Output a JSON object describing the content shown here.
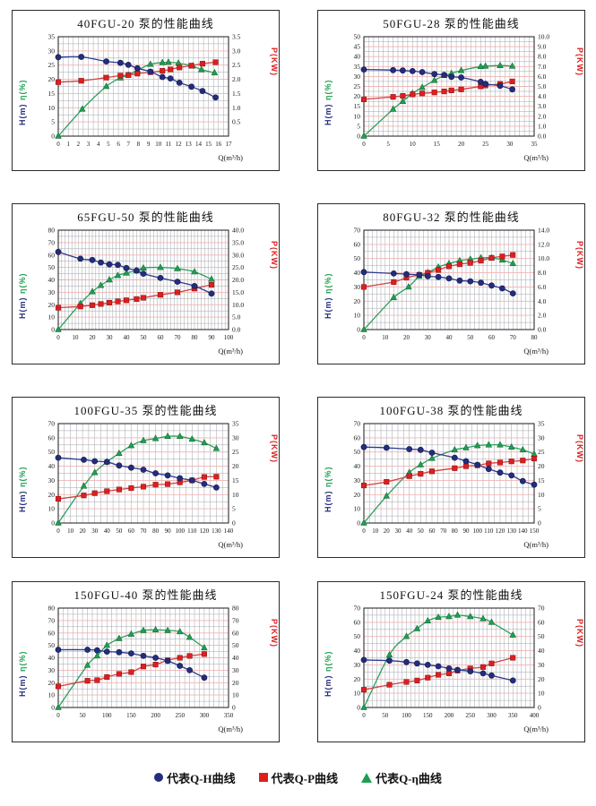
{
  "page": {
    "background": "#ffffff"
  },
  "style": {
    "h_color": "#232d7e",
    "p_color": "#dd1f1f",
    "eta_color": "#1e9e50",
    "h_line": "#2e3a8c",
    "p_line": "#cf4242",
    "eta_line": "#2f9e5e",
    "grid_gray": "#a0a4ac",
    "grid_pink": "#f0b4b4",
    "axis_color": "#1a1a1a",
    "tick_color": "#161616",
    "left_label_h": "H(m)",
    "left_label_eta": "η(%)",
    "right_label": "P(KW)"
  },
  "legend": {
    "items": [
      {
        "marker": "circle-marker-icon",
        "color": "#232d7e",
        "label": "代表Q-H曲线"
      },
      {
        "marker": "square-marker-icon",
        "color": "#dd1f1f",
        "label": "代表Q-P曲线"
      },
      {
        "marker": "triangle-marker-icon",
        "color": "#1e9e50",
        "label": "代表Q-η曲线"
      }
    ]
  },
  "chart_data": [
    {
      "type": "line",
      "model": "40FGU-20",
      "title": "40FGU-20 泵的性能曲线",
      "x_axis": {
        "label": "Q(m³/h)",
        "min": 0,
        "max": 17,
        "step": 1,
        "minor_step": 0.5,
        "decimals": 0
      },
      "left_axis": {
        "min": 0,
        "max": 35,
        "step": 5,
        "decimals": 0
      },
      "right_axis": {
        "min": 0,
        "max": 3.5,
        "step": 0.5,
        "decimals": 1,
        "label_from": 0.5
      },
      "series": {
        "QH": {
          "x": [
            0,
            2.3,
            4.8,
            6.2,
            7,
            7.9,
            9.2,
            10.4,
            11.2,
            12.1,
            13.3,
            14.4,
            15.7
          ],
          "y": [
            27.8,
            27.9,
            26.3,
            25.8,
            25.1,
            23.9,
            22.7,
            20.8,
            20.3,
            18.8,
            17.4,
            15.9,
            13.6
          ]
        },
        "QP": {
          "x": [
            0,
            2.3,
            4.8,
            6.2,
            7,
            7.9,
            9.2,
            10.4,
            11.2,
            12.1,
            13.3,
            14.4,
            15.7
          ],
          "y": [
            1.9,
            1.95,
            2.06,
            2.13,
            2.15,
            2.2,
            2.25,
            2.3,
            2.35,
            2.42,
            2.48,
            2.55,
            2.6
          ]
        },
        "Qeta": {
          "x": [
            0,
            2.4,
            4.8,
            6.2,
            7,
            7.9,
            9.2,
            10.4,
            11,
            12,
            13.4,
            14.3,
            15.6
          ],
          "y": [
            0,
            9.5,
            17.5,
            20.5,
            21.5,
            23.2,
            25.3,
            25.9,
            26,
            25.7,
            24.7,
            23.4,
            22.3
          ]
        }
      }
    },
    {
      "type": "line",
      "model": "50FGU-28",
      "title": "50FGU-28 泵的性能曲线",
      "x_axis": {
        "label": "Q(m³/h)",
        "min": 0,
        "max": 35,
        "step": 5,
        "minor_step": 1,
        "decimals": 0
      },
      "left_axis": {
        "min": 0,
        "max": 50,
        "step": 5,
        "decimals": 0
      },
      "right_axis": {
        "min": 0,
        "max": 10,
        "step": 1,
        "decimals": 1
      },
      "series": {
        "QH": {
          "x": [
            0,
            6,
            8,
            10,
            12,
            14.5,
            16.5,
            18,
            20,
            24,
            25,
            28,
            30.5
          ],
          "y": [
            33.5,
            33.2,
            33,
            32.7,
            32.2,
            31.2,
            30.8,
            29.8,
            29.5,
            27.3,
            26.3,
            25.3,
            23.5
          ]
        },
        "QP": {
          "x": [
            0,
            6,
            8,
            10,
            12,
            14.5,
            16.5,
            18,
            20,
            24,
            25,
            28,
            30.5
          ],
          "y": [
            3.7,
            3.95,
            4.05,
            4.2,
            4.3,
            4.4,
            4.5,
            4.6,
            4.7,
            5.0,
            5.1,
            5.25,
            5.5
          ]
        },
        "Qeta": {
          "x": [
            0,
            6,
            8,
            10,
            12,
            14.5,
            16.5,
            18,
            20,
            24,
            25,
            28,
            30.5
          ],
          "y": [
            0,
            13.5,
            17.5,
            21.5,
            24.5,
            28,
            30.5,
            31.5,
            33,
            35,
            35.2,
            35.5,
            35.2
          ]
        }
      }
    },
    {
      "type": "line",
      "model": "65FGU-50",
      "title": "65FGU-50 泵的性能曲线",
      "x_axis": {
        "label": "Q(m³/h)",
        "min": 0,
        "max": 100,
        "step": 10,
        "minor_step": 2,
        "decimals": 0
      },
      "left_axis": {
        "min": 0,
        "max": 80,
        "step": 10,
        "decimals": 0
      },
      "right_axis": {
        "min": 0,
        "max": 40,
        "step": 5,
        "decimals": 1
      },
      "series": {
        "QH": {
          "x": [
            0,
            13,
            20,
            25,
            30,
            35,
            40,
            46,
            50,
            60,
            70,
            80,
            90
          ],
          "y": [
            62.5,
            57,
            56,
            54,
            52.5,
            52,
            49.5,
            47.5,
            45,
            41.5,
            38.5,
            35,
            29
          ]
        },
        "QP": {
          "x": [
            0,
            13,
            20,
            25,
            30,
            35,
            40,
            46,
            50,
            60,
            70,
            80,
            90
          ],
          "y": [
            8.8,
            9.3,
            9.8,
            10.3,
            10.8,
            11.3,
            11.8,
            12.3,
            12.8,
            14,
            15,
            16.5,
            18
          ]
        },
        "Qeta": {
          "x": [
            0,
            13,
            20,
            25,
            30,
            35,
            40,
            46,
            50,
            60,
            70,
            80,
            90
          ],
          "y": [
            0,
            21,
            30.5,
            35.5,
            40,
            43.5,
            45.5,
            47.5,
            49.5,
            50,
            49,
            46.5,
            40.5
          ]
        }
      }
    },
    {
      "type": "line",
      "model": "80FGU-32",
      "title": "80FGU-32 泵的性能曲线",
      "x_axis": {
        "label": "Q(m³/h)",
        "min": 0,
        "max": 80,
        "step": 10,
        "minor_step": 2,
        "decimals": 0
      },
      "left_axis": {
        "min": 0,
        "max": 70,
        "step": 10,
        "decimals": 0
      },
      "right_axis": {
        "min": 0,
        "max": 14,
        "step": 2,
        "decimals": 1
      },
      "series": {
        "QH": {
          "x": [
            0,
            14,
            20,
            26,
            30,
            35,
            40,
            45,
            50,
            55,
            60,
            65,
            70
          ],
          "y": [
            40.5,
            39.5,
            39,
            38.5,
            37.5,
            37,
            36,
            34.5,
            34,
            33,
            31,
            29,
            25.5
          ]
        },
        "QP": {
          "x": [
            0,
            14,
            20,
            26,
            30,
            35,
            40,
            45,
            50,
            55,
            60,
            65,
            70
          ],
          "y": [
            6.0,
            6.7,
            7.3,
            7.7,
            8.0,
            8.4,
            8.9,
            9.2,
            9.4,
            9.7,
            10.1,
            10.3,
            10.5
          ]
        },
        "Qeta": {
          "x": [
            0,
            14,
            21,
            26,
            30,
            35,
            40,
            45,
            50,
            55,
            60,
            65,
            70
          ],
          "y": [
            0,
            22.5,
            30,
            37.5,
            40,
            44,
            46.5,
            48.5,
            49.5,
            50.5,
            50.5,
            49,
            46.5
          ]
        }
      }
    },
    {
      "type": "line",
      "model": "100FGU-35",
      "title": "100FGU-35 泵的性能曲线",
      "x_axis": {
        "label": "Q(m³/h)",
        "min": 0,
        "max": 140,
        "step": 10,
        "minor_step": 5,
        "decimals": 0
      },
      "left_axis": {
        "min": 0,
        "max": 70,
        "step": 10,
        "decimals": 0
      },
      "right_axis": {
        "min": 0,
        "max": 35,
        "step": 5,
        "decimals": 0
      },
      "series": {
        "QH": {
          "x": [
            0,
            21,
            30,
            40,
            50,
            60,
            70,
            80,
            90,
            100,
            110,
            120,
            130
          ],
          "y": [
            46,
            44.5,
            43.5,
            43,
            40.5,
            39,
            37.5,
            35,
            33.5,
            31.5,
            30,
            27.5,
            25
          ]
        },
        "QP": {
          "x": [
            0,
            21,
            30,
            40,
            50,
            60,
            70,
            80,
            90,
            100,
            110,
            120,
            130
          ],
          "y": [
            8.5,
            9.7,
            10.5,
            11.2,
            11.8,
            12.3,
            12.8,
            13.5,
            13.7,
            14.3,
            15,
            16.2,
            16.3
          ]
        },
        "Qeta": {
          "x": [
            0,
            21,
            30,
            40,
            50,
            60,
            70,
            80,
            90,
            100,
            110,
            120,
            130
          ],
          "y": [
            0,
            26,
            35.5,
            43,
            49,
            54.5,
            58,
            59.5,
            61,
            61,
            59,
            56.5,
            52.5
          ]
        }
      }
    },
    {
      "type": "line",
      "model": "100FGU-38",
      "title": "100FGU-38 泵的性能曲线",
      "x_axis": {
        "label": "Q(m³/h)",
        "min": 0,
        "max": 150,
        "step": 10,
        "minor_step": 5,
        "decimals": 0
      },
      "left_axis": {
        "min": 0,
        "max": 70,
        "step": 10,
        "decimals": 0
      },
      "right_axis": {
        "min": 0,
        "max": 35,
        "step": 5,
        "decimals": 0
      },
      "series": {
        "QH": {
          "x": [
            0,
            20,
            40,
            50,
            60,
            80,
            90,
            100,
            110,
            120,
            130,
            140,
            150
          ],
          "y": [
            53.5,
            53,
            52,
            51.5,
            49.5,
            46,
            43.5,
            41,
            38,
            35.5,
            33.5,
            29.5,
            27
          ]
        },
        "QP": {
          "x": [
            0,
            20,
            40,
            50,
            60,
            80,
            90,
            100,
            110,
            120,
            130,
            140,
            150
          ],
          "y": [
            13.2,
            14.5,
            16.5,
            17.3,
            18.2,
            19.3,
            20,
            20.3,
            21,
            21.3,
            21.7,
            22,
            22.7
          ]
        },
        "Qeta": {
          "x": [
            0,
            20,
            40,
            50,
            60,
            80,
            90,
            100,
            110,
            120,
            130,
            140,
            150
          ],
          "y": [
            0,
            19,
            35.5,
            41,
            45.5,
            51.5,
            53,
            54.5,
            55,
            55,
            53.5,
            51.5,
            48.5
          ]
        }
      }
    },
    {
      "type": "line",
      "model": "150FGU-40",
      "title": "150FGU-40 泵的性能曲线",
      "x_axis": {
        "label": "Q(m³/h)",
        "min": 0,
        "max": 350,
        "step": 50,
        "minor_step": 10,
        "decimals": 0
      },
      "left_axis": {
        "min": 0,
        "max": 80,
        "step": 10,
        "decimals": 0
      },
      "right_axis": {
        "min": 0,
        "max": 80,
        "step": 10,
        "decimals": 0
      },
      "series": {
        "QH": {
          "x": [
            0,
            60,
            80,
            100,
            125,
            150,
            175,
            200,
            225,
            250,
            270,
            300
          ],
          "y": [
            46.5,
            46.5,
            46,
            45,
            44.5,
            43.5,
            41.5,
            40,
            37.5,
            33.5,
            30,
            24
          ]
        },
        "QP": {
          "x": [
            0,
            60,
            80,
            100,
            125,
            150,
            175,
            200,
            225,
            250,
            270,
            300
          ],
          "y": [
            17,
            21.5,
            22,
            24.5,
            27,
            28.5,
            33,
            34.5,
            38,
            40,
            41.5,
            43
          ]
        },
        "Qeta": {
          "x": [
            0,
            60,
            80,
            100,
            125,
            150,
            175,
            200,
            225,
            250,
            270,
            300
          ],
          "y": [
            0,
            34,
            41.5,
            50,
            55.5,
            59,
            62,
            62.5,
            62,
            61,
            56.5,
            48
          ]
        }
      }
    },
    {
      "type": "line",
      "model": "150FGU-24",
      "title": "150FGU-24 泵的性能曲线",
      "x_axis": {
        "label": "Q(m³/h)",
        "min": 0,
        "max": 400,
        "step": 50,
        "minor_step": 10,
        "decimals": 0
      },
      "left_axis": {
        "min": 0,
        "max": 70,
        "step": 10,
        "decimals": 0
      },
      "right_axis": {
        "min": 0,
        "max": 70,
        "step": 10,
        "decimals": 0
      },
      "series": {
        "QH": {
          "x": [
            0,
            60,
            100,
            125,
            150,
            175,
            200,
            220,
            250,
            280,
            300,
            350
          ],
          "y": [
            33.5,
            33,
            32,
            31,
            30,
            29,
            27.5,
            26.5,
            25.5,
            24,
            22.5,
            19
          ]
        },
        "QP": {
          "x": [
            0,
            60,
            100,
            125,
            150,
            175,
            200,
            220,
            250,
            280,
            300,
            350
          ],
          "y": [
            12.5,
            16,
            18,
            19,
            21,
            23,
            24,
            26,
            27.5,
            28.5,
            31,
            35
          ]
        },
        "Qeta": {
          "x": [
            0,
            60,
            100,
            125,
            150,
            175,
            200,
            220,
            250,
            280,
            300,
            350
          ],
          "y": [
            0,
            37,
            50,
            55.5,
            61,
            63.5,
            64,
            65,
            64,
            62.5,
            60,
            51
          ]
        }
      }
    }
  ]
}
